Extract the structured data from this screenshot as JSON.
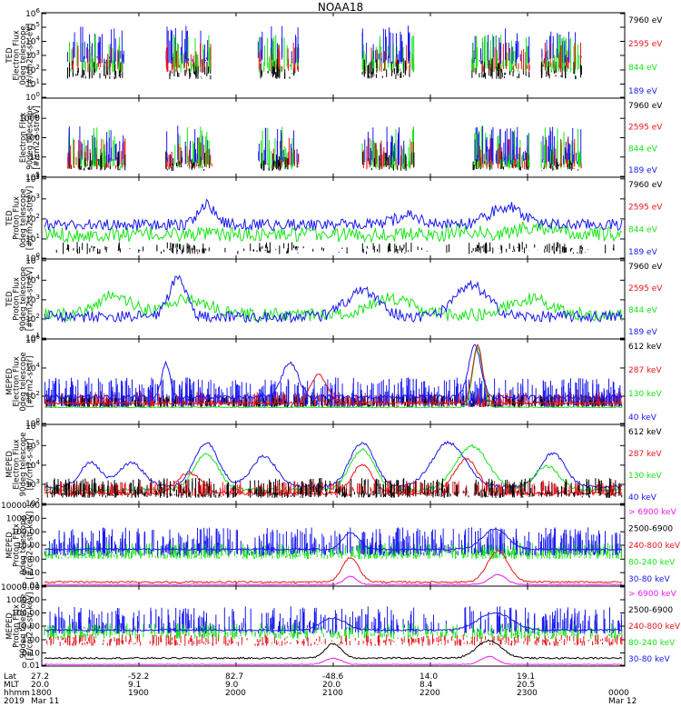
{
  "title": "NOAA18",
  "colors": {
    "black": "#000000",
    "red": "#e8141b",
    "green": "#18e418",
    "blue": "#1818f0",
    "magenta": "#f018f0"
  },
  "chart_data": [
    {
      "type": "line",
      "panel": 1,
      "ylabel": [
        "TED",
        "Electron Flux",
        "0deg telescope",
        "[#/cm2-s-str-eV]"
      ],
      "ytick_labels": [
        "10^0",
        "10^1",
        "10^2",
        "10^3",
        "10^4",
        "10^5",
        "10^6"
      ],
      "ylim": [
        1,
        1000000
      ],
      "scale": "log",
      "series": [
        {
          "name": "7960 eV",
          "color": "#000000"
        },
        {
          "name": "2595 eV",
          "color": "#e8141b"
        },
        {
          "name": "844 eV",
          "color": "#18e418"
        },
        {
          "name": "189 eV",
          "color": "#1818f0"
        }
      ]
    },
    {
      "type": "line",
      "panel": 2,
      "ylabel": [
        "Electron Flux",
        "90deg telescope",
        "[#/cm2-s-str-eV]"
      ],
      "ytick_labels": [
        "1",
        "10",
        "100",
        "1000"
      ],
      "ylim": [
        1,
        5000
      ],
      "scale": "log",
      "series": [
        {
          "name": "7960 eV",
          "color": "#000000"
        },
        {
          "name": "2595 eV",
          "color": "#e8141b"
        },
        {
          "name": "844 eV",
          "color": "#18e418"
        },
        {
          "name": "189 eV",
          "color": "#1818f0"
        }
      ]
    },
    {
      "type": "line",
      "panel": 3,
      "ylabel": [
        "TED",
        "Proton Flux",
        "0deg telescope",
        "[#/cm2-s-str-eV]"
      ],
      "ytick_labels": [
        "10^0",
        "10^1",
        "10^2",
        "10^3",
        "10^4",
        "10^5"
      ],
      "ylim": [
        1,
        100000
      ],
      "scale": "log",
      "series": [
        {
          "name": "7960 eV",
          "color": "#000000"
        },
        {
          "name": "2595 eV",
          "color": "#e8141b"
        },
        {
          "name": "844 eV",
          "color": "#18e418"
        },
        {
          "name": "189 eV",
          "color": "#1818f0"
        }
      ]
    },
    {
      "type": "line",
      "panel": 4,
      "ylabel": [
        "TED",
        "Proton Flux",
        "90deg telescope",
        "[#/cm2-s-str-eV]"
      ],
      "ytick_labels": [
        "10^1",
        "10^2",
        "10^3",
        "10^4",
        "10^5"
      ],
      "ylim": [
        10,
        100000
      ],
      "scale": "log",
      "series": [
        {
          "name": "7960 eV",
          "color": "#000000"
        },
        {
          "name": "2595 eV",
          "color": "#e8141b"
        },
        {
          "name": "844 eV",
          "color": "#18e418"
        },
        {
          "name": "189 eV",
          "color": "#1818f0"
        }
      ]
    },
    {
      "type": "line",
      "panel": 5,
      "ylabel": [
        "MEPED",
        "Electron Flux",
        "0deg telescope",
        "[#/cm2-s-str]"
      ],
      "ytick_labels": [
        "10^0",
        "10^2",
        "10^4",
        "10^6"
      ],
      "ylim": [
        1,
        1000000
      ],
      "scale": "log",
      "series": [
        {
          "name": "612 keV",
          "color": "#000000"
        },
        {
          "name": "287 keV",
          "color": "#e8141b"
        },
        {
          "name": "130 keV",
          "color": "#18e418"
        },
        {
          "name": "40 keV",
          "color": "#1818f0"
        }
      ]
    },
    {
      "type": "line",
      "panel": 6,
      "ylabel": [
        "MEPED",
        "Electron Flux",
        "90deg telescope",
        "[#/cm2-s-str]"
      ],
      "ytick_labels": [
        "10^2",
        "10^3",
        "10^4",
        "10^5",
        "10^6"
      ],
      "ylim": [
        100,
        1000000
      ],
      "scale": "log",
      "series": [
        {
          "name": "612 keV",
          "color": "#000000"
        },
        {
          "name": "287 keV",
          "color": "#e8141b"
        },
        {
          "name": "130 keV",
          "color": "#18e418"
        },
        {
          "name": "40 keV",
          "color": "#1818f0"
        }
      ]
    },
    {
      "type": "line",
      "panel": 7,
      "ylabel": [
        "MEPED",
        "Proton Flux",
        "0deg telescope",
        "[#/cm2-s-str-keV]"
      ],
      "ytick_labels": [
        "0.01",
        "0.10",
        "1.00",
        "10.00",
        "100.00",
        "1000.00",
        "10000.00"
      ],
      "ylim": [
        0.01,
        10000
      ],
      "scale": "log",
      "series": [
        {
          "name": "> 6900 keV",
          "color": "#f018f0"
        },
        {
          "name": "2500-6900",
          "color": "#000000"
        },
        {
          "name": "240-800 keV",
          "color": "#e8141b"
        },
        {
          "name": "80-240 keV",
          "color": "#18e418"
        },
        {
          "name": "30-80 keV",
          "color": "#1818f0"
        }
      ]
    },
    {
      "type": "line",
      "panel": 8,
      "ylabel": [
        "MEPED",
        "Proton Flux",
        "90deg telescope",
        "[#/cm2-s-str-keV]"
      ],
      "ytick_labels": [
        "0.01",
        "0.10",
        "1.00",
        "10.00",
        "100.00",
        "1000.00",
        "10000.00"
      ],
      "ylim": [
        0.01,
        10000
      ],
      "scale": "log",
      "series": [
        {
          "name": "> 6900 keV",
          "color": "#f018f0"
        },
        {
          "name": "2500-6900",
          "color": "#000000"
        },
        {
          "name": "240-800 keV",
          "color": "#e8141b"
        },
        {
          "name": "80-240 keV",
          "color": "#18e418"
        },
        {
          "name": "30-80 keV",
          "color": "#1818f0"
        }
      ]
    }
  ],
  "x_axis": {
    "row_labels": [
      "Lat",
      "MLT",
      "hhmm",
      "2019"
    ],
    "ticks": [
      {
        "lat": "27.2",
        "mlt": "20.0",
        "hhmm": "1800",
        "date": "Mar 11"
      },
      {
        "lat": "-52.2",
        "mlt": "9.1",
        "hhmm": "1900",
        "date": ""
      },
      {
        "lat": "82.7",
        "mlt": "9.0",
        "hhmm": "2000",
        "date": ""
      },
      {
        "lat": "-48.6",
        "mlt": "20.0",
        "hhmm": "2100",
        "date": ""
      },
      {
        "lat": "14.0",
        "mlt": "8.4",
        "hhmm": "2200",
        "date": ""
      },
      {
        "lat": "19.1",
        "mlt": "20.5",
        "hhmm": "2300",
        "date": ""
      },
      {
        "lat": "",
        "mlt": "",
        "hhmm": "0000",
        "date": "Mar 12"
      }
    ]
  }
}
